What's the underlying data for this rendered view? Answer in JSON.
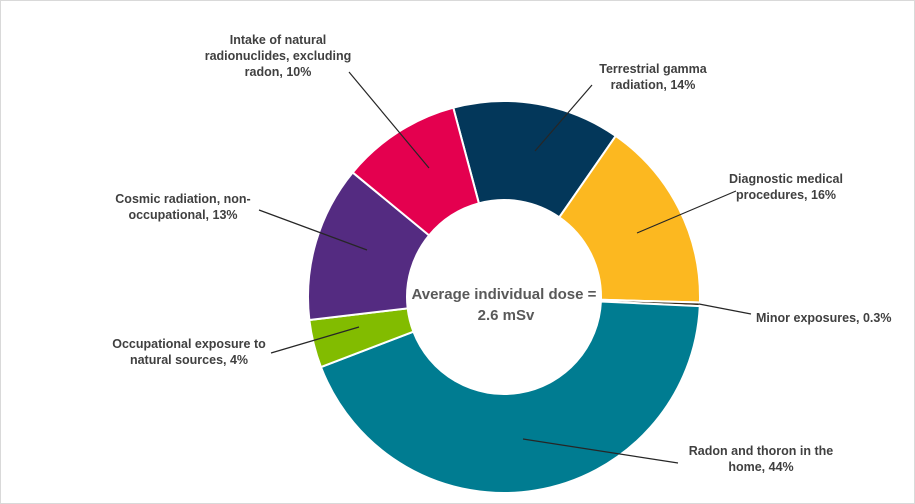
{
  "chart_data": {
    "type": "pie",
    "variant": "donut",
    "center_label": [
      "Average individual dose =",
      "2.6 mSv"
    ],
    "legend": "none",
    "slices": [
      {
        "name": "Terrestrial gamma radiation",
        "value": 14,
        "label": [
          "Terrestrial gamma",
          "radiation, 14%"
        ],
        "color": "#03375a"
      },
      {
        "name": "Diagnostic medical procedures",
        "value": 16,
        "label": [
          "Diagnostic medical",
          "procedures, 16%"
        ],
        "color": "#fcb820"
      },
      {
        "name": "Minor exposures",
        "value": 0.3,
        "label": [
          "Minor exposures, 0.3%"
        ],
        "color": "#3a2a16"
      },
      {
        "name": "Radon and thoron in the home",
        "value": 44,
        "label": [
          "Radon and thoron in the",
          "home, 44%"
        ],
        "color": "#007c91"
      },
      {
        "name": "Occupational exposure to natural sources",
        "value": 4,
        "label": [
          "Occupational exposure to",
          "natural sources, 4%"
        ],
        "color": "#82bc00"
      },
      {
        "name": "Cosmic radiation, non-occupational",
        "value": 13,
        "label": [
          "Cosmic radiation, non-",
          "occupational, 13%"
        ],
        "color": "#542b81"
      },
      {
        "name": "Intake of natural radionuclides, excluding radon",
        "value": 10,
        "label": [
          "Intake of natural",
          "radionuclides, excluding",
          "radon, 10%"
        ],
        "color": "#e4004f"
      }
    ]
  }
}
